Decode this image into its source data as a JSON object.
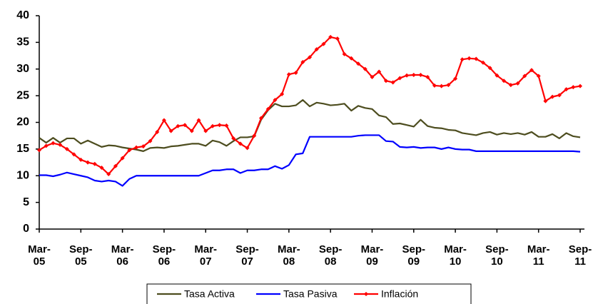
{
  "chart_data": {
    "type": "line",
    "categories": [
      "Mar-\n05",
      null,
      null,
      null,
      null,
      null,
      "Sep-\n05",
      null,
      null,
      null,
      null,
      null,
      "Mar-\n06",
      null,
      null,
      null,
      null,
      null,
      "Sep-\n06",
      null,
      null,
      null,
      null,
      null,
      "Mar-\n07",
      null,
      null,
      null,
      null,
      null,
      "Sep-\n07",
      null,
      null,
      null,
      null,
      null,
      "Mar-\n08",
      null,
      null,
      null,
      null,
      null,
      "Sep-\n08",
      null,
      null,
      null,
      null,
      null,
      "Mar-\n09",
      null,
      null,
      null,
      null,
      null,
      "Sep-\n09",
      null,
      null,
      null,
      null,
      null,
      "Mar-\n10",
      null,
      null,
      null,
      null,
      null,
      "Sep-\n10",
      null,
      null,
      null,
      null,
      null,
      "Mar-\n11",
      null,
      null,
      null,
      null,
      null,
      "Sep-\n11"
    ],
    "series": [
      {
        "name": "Tasa Activa",
        "color": "#4d4d1f",
        "marker": false,
        "values": [
          17.1,
          16.2,
          17.1,
          16.2,
          17,
          17,
          16,
          16.6,
          16,
          15.4,
          15.7,
          15.6,
          15.3,
          15.1,
          14.9,
          14.6,
          15.2,
          15.3,
          15.2,
          15.5,
          15.6,
          15.8,
          16,
          16,
          15.6,
          16.6,
          16.3,
          15.6,
          16.5,
          17.2,
          17.2,
          17.4,
          20.5,
          22.3,
          23.5,
          23,
          23,
          23.2,
          24.2,
          23,
          23.7,
          23.5,
          23.2,
          23.3,
          23.5,
          22.2,
          23.1,
          22.7,
          22.5,
          21.3,
          21,
          19.7,
          19.8,
          19.5,
          19.2,
          20.5,
          19.3,
          19,
          18.9,
          18.6,
          18.5,
          18,
          17.8,
          17.6,
          18,
          18.2,
          17.7,
          18,
          17.8,
          18,
          17.7,
          18.2,
          17.3,
          17.3,
          17.8,
          17,
          18,
          17.4,
          17.2
        ]
      },
      {
        "name": "Tasa Pasiva",
        "color": "#0000ff",
        "marker": false,
        "values": [
          10.1,
          10.1,
          9.9,
          10.2,
          10.6,
          10.3,
          10,
          9.7,
          9.1,
          8.9,
          9.1,
          8.9,
          8.1,
          9.4,
          10,
          10,
          10,
          10,
          10,
          10,
          10,
          10,
          10,
          10,
          10.5,
          11,
          11,
          11.2,
          11.2,
          10.5,
          11,
          11,
          11.2,
          11.2,
          11.8,
          11.3,
          12,
          14,
          14.2,
          17.3,
          17.3,
          17.3,
          17.3,
          17.3,
          17.3,
          17.3,
          17.5,
          17.6,
          17.6,
          17.6,
          16.5,
          16.4,
          15.4,
          15.3,
          15.4,
          15.2,
          15.3,
          15.3,
          15,
          15.3,
          15,
          14.9,
          14.9,
          14.6,
          14.6,
          14.6,
          14.6,
          14.6,
          14.6,
          14.6,
          14.6,
          14.6,
          14.6,
          14.6,
          14.6,
          14.6,
          14.6,
          14.6,
          14.5
        ]
      },
      {
        "name": "Inflación",
        "color": "#ff0000",
        "marker": true,
        "values": [
          14.8,
          15.6,
          16.1,
          15.8,
          15,
          14,
          13,
          12.5,
          12.2,
          11.5,
          10.3,
          11.8,
          13.3,
          14.8,
          15.3,
          15.5,
          16.5,
          18.2,
          20.4,
          18.4,
          19.3,
          19.5,
          18.4,
          20.4,
          18.4,
          19.3,
          19.5,
          19.4,
          17,
          16,
          15.2,
          17.5,
          20.8,
          22.5,
          24.2,
          25.3,
          29,
          29.3,
          31.3,
          32.2,
          33.7,
          34.7,
          36,
          35.7,
          32.8,
          32,
          31,
          30,
          28.5,
          29.5,
          27.8,
          27.5,
          28.3,
          28.8,
          28.9,
          28.9,
          28.5,
          26.9,
          26.8,
          27,
          28.2,
          31.8,
          32,
          31.9,
          31.2,
          30.2,
          28.8,
          27.8,
          27,
          27.3,
          28.7,
          29.8,
          28.7,
          24,
          24.8,
          25.1,
          26.2,
          26.6,
          26.8
        ]
      }
    ],
    "ylim": [
      0,
      40
    ],
    "yticks": [
      0,
      5,
      10,
      15,
      20,
      25,
      30,
      35,
      40
    ],
    "grid": false,
    "legend": "bottom"
  }
}
